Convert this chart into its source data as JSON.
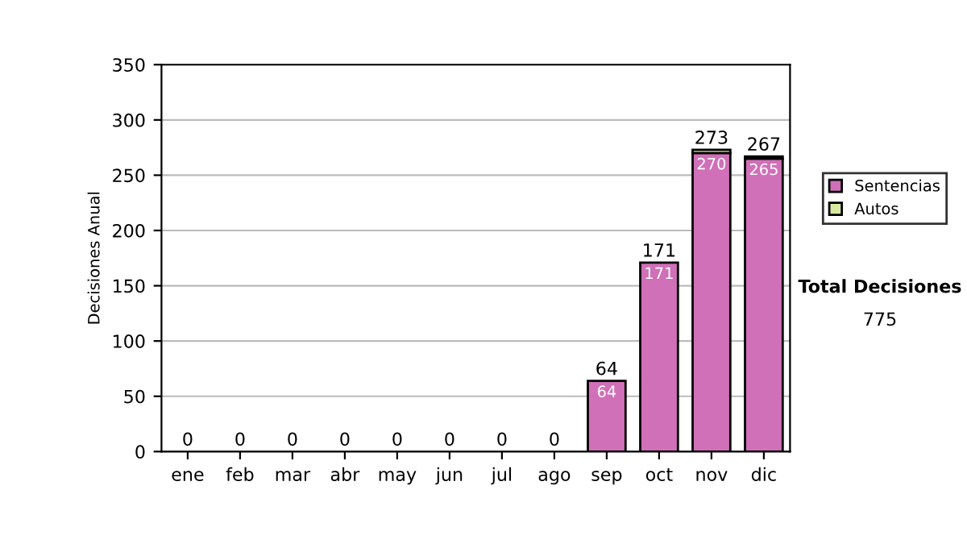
{
  "chart_data": {
    "type": "bar",
    "stacked": true,
    "ylabel": "Decisiones Anual",
    "categories": [
      "ene",
      "feb",
      "mar",
      "abr",
      "may",
      "jun",
      "jul",
      "ago",
      "sep",
      "oct",
      "nov",
      "dic"
    ],
    "series": [
      {
        "name": "Sentencias",
        "color": "#d070b8",
        "values": [
          0,
          0,
          0,
          0,
          0,
          0,
          0,
          0,
          64,
          171,
          270,
          265
        ],
        "value_labels": [
          null,
          null,
          null,
          null,
          null,
          null,
          null,
          null,
          "64",
          "171",
          "270",
          "265"
        ]
      },
      {
        "name": "Autos",
        "color": "#d8eaa0",
        "values": [
          0,
          0,
          0,
          0,
          0,
          0,
          0,
          0,
          0,
          0,
          3,
          2
        ]
      }
    ],
    "totals": [
      "0",
      "0",
      "0",
      "0",
      "0",
      "0",
      "0",
      "0",
      "64",
      "171",
      "273",
      "267"
    ],
    "ylim": [
      0,
      350
    ],
    "yticks": [
      0,
      50,
      100,
      150,
      200,
      250,
      300,
      350
    ],
    "grid": "y",
    "legend": "right",
    "annotations": [
      "Total Decisiones",
      "775"
    ]
  }
}
